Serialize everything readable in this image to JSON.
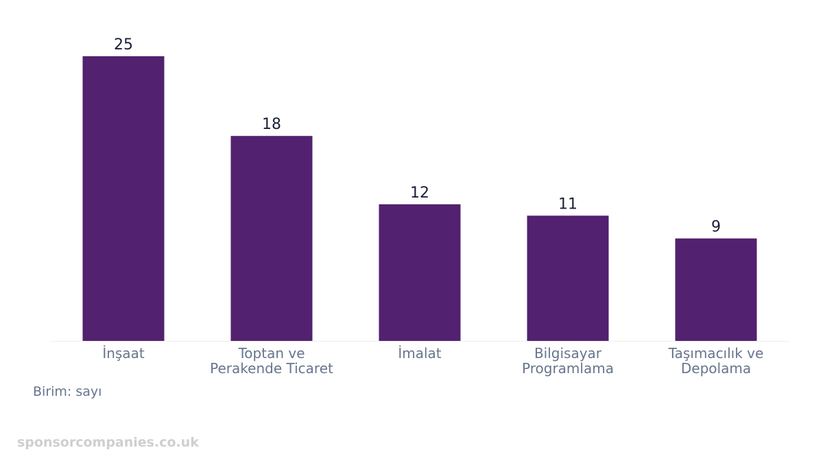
{
  "chart_data": {
    "type": "bar",
    "categories": [
      [
        "İnşaat"
      ],
      [
        "Toptan ve",
        "Perakende Ticaret"
      ],
      [
        "İmalat"
      ],
      [
        "Bilgisayar",
        "Programlama"
      ],
      [
        "Taşımacılık ve",
        "Depolama"
      ]
    ],
    "values": [
      25,
      18,
      12,
      11,
      9
    ],
    "ylim": [
      0,
      25
    ],
    "grid": false,
    "bar_color": "#52216f",
    "title": "",
    "xlabel": "",
    "ylabel": ""
  },
  "unit_note": "Birim: sayı",
  "watermark": "sponsorcompanies.co.uk",
  "colors": {
    "bar": "#52216f",
    "value_label": "#1a1f36",
    "tick_label": "#66758c",
    "axis": "#eeeeee",
    "watermark": "#cfcfcf"
  }
}
